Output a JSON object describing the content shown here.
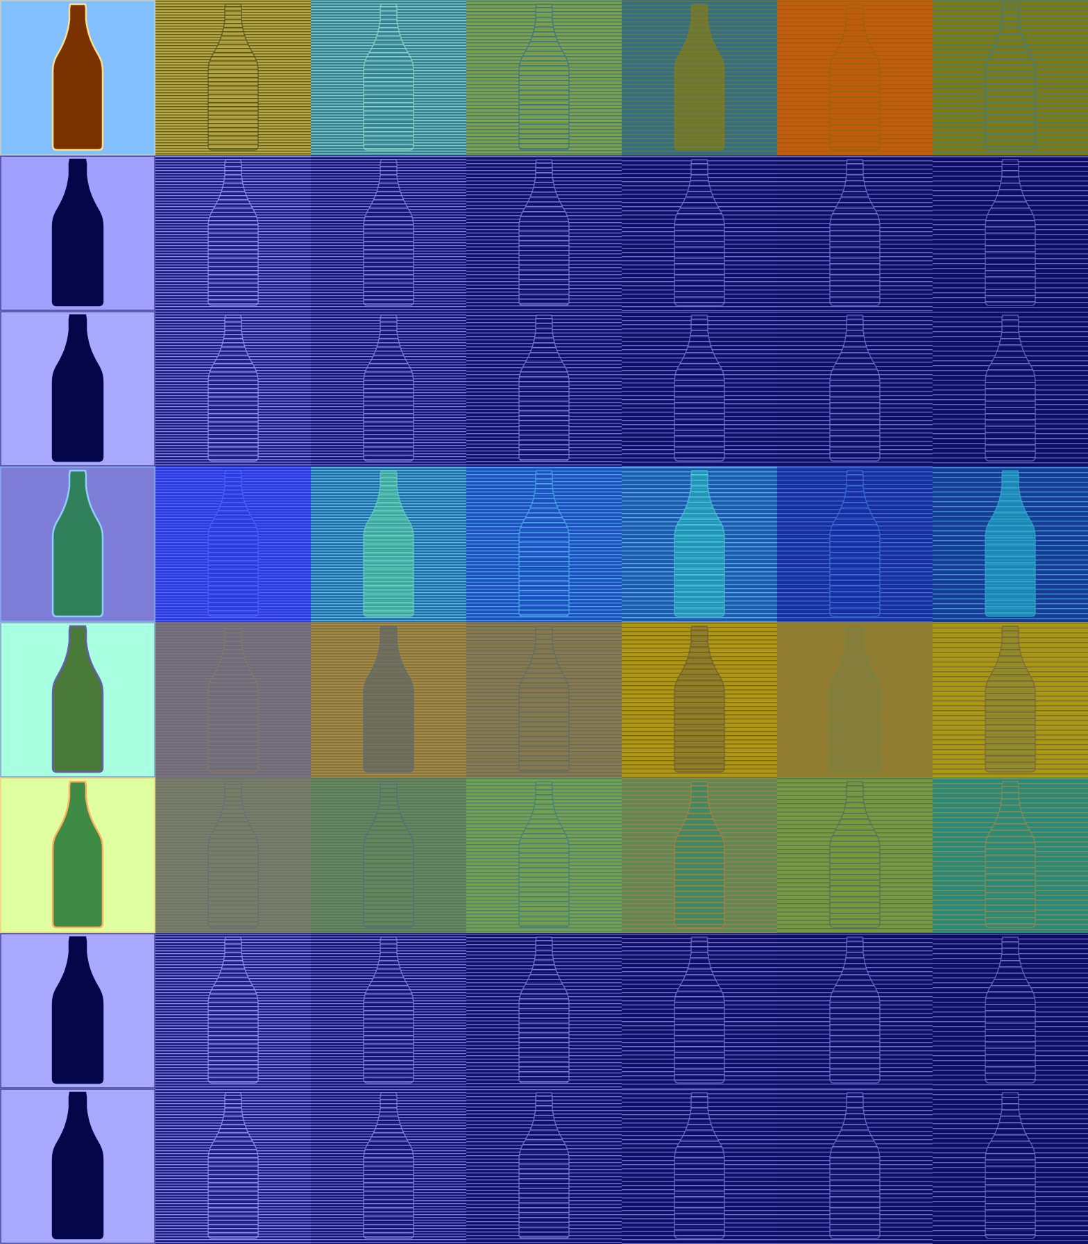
{
  "grid": {
    "rows": [
      {
        "original": {
          "background": "#82bfff",
          "bottle": "#7a3200",
          "outline": "#ffe08a"
        },
        "panels": [
          {
            "background": "#b9a83e",
            "stripe": "#4a4a20",
            "bottle": "#b9a83e"
          },
          {
            "background": "#2f7f9a",
            "stripe": "#9adcc0",
            "bottle": "#2f7f9a"
          },
          {
            "background": "#7fa045",
            "stripe": "#2f6f95",
            "bottle": "#7fa045"
          },
          {
            "background": "#2f6f8a",
            "stripe": "#7f7a20",
            "bottle": "#7f7a20"
          },
          {
            "background": "#c55a10",
            "stripe": "#8a6a00",
            "bottle": "#c55a10"
          },
          {
            "background": "#7f7a10",
            "stripe": "#2f7fa8",
            "bottle": "#7f7a10"
          }
        ]
      },
      {
        "original": {
          "background": "#a0a0ff",
          "bottle": "#05054a",
          "outline": "#05054a"
        },
        "panels": [
          {
            "background": "#1a1a7a",
            "stripe": "#9a9aff",
            "bottle": "#1a1a7a"
          },
          {
            "background": "#12126e",
            "stripe": "#8a8ae8",
            "bottle": "#12126e"
          },
          {
            "background": "#0f0f68",
            "stripe": "#8080e0",
            "bottle": "#0f0f68"
          },
          {
            "background": "#0e0e66",
            "stripe": "#7c7cdc",
            "bottle": "#0e0e66"
          },
          {
            "background": "#0d0d64",
            "stripe": "#7878d8",
            "bottle": "#0d0d64"
          },
          {
            "background": "#0c0c62",
            "stripe": "#7474d4",
            "bottle": "#0c0c62"
          }
        ]
      },
      {
        "original": {
          "background": "#a8a8ff",
          "bottle": "#05054a",
          "outline": "#05054a"
        },
        "panels": [
          {
            "background": "#1a1a7a",
            "stripe": "#9a9aff",
            "bottle": "#1a1a7a"
          },
          {
            "background": "#12126e",
            "stripe": "#8a8ae8",
            "bottle": "#12126e"
          },
          {
            "background": "#0f0f68",
            "stripe": "#8080e0",
            "bottle": "#0f0f68"
          },
          {
            "background": "#0e0e66",
            "stripe": "#7c7cdc",
            "bottle": "#0e0e66"
          },
          {
            "background": "#0d0d64",
            "stripe": "#7878d8",
            "bottle": "#0d0d64"
          },
          {
            "background": "#0c0c62",
            "stripe": "#7474d4",
            "bottle": "#0c0c62"
          }
        ]
      },
      {
        "original": {
          "background": "#7d7dd8",
          "bottle": "#2f7f5a",
          "outline": "#8fd0ff"
        },
        "panels": [
          {
            "background": "#2f38d8",
            "stripe": "#4a6aff",
            "bottle": "#2f38d8"
          },
          {
            "background": "#1f68b8",
            "stripe": "#6ad0c8",
            "bottle": "#48b89a"
          },
          {
            "background": "#1f4ec0",
            "stripe": "#4ab0e8",
            "bottle": "#1f4ec0"
          },
          {
            "background": "#1f58b0",
            "stripe": "#5ac0e0",
            "bottle": "#20a8b8"
          },
          {
            "background": "#1a2ea0",
            "stripe": "#3a78d8",
            "bottle": "#1a2ea0"
          },
          {
            "background": "#1a3a98",
            "stripe": "#38a8d0",
            "bottle": "#20a0c0"
          }
        ]
      },
      {
        "original": {
          "background": "#a8ffe0",
          "bottle": "#4a7a3a",
          "outline": "#6a5ab0"
        },
        "panels": [
          {
            "background": "#6a6a88",
            "stripe": "#8a7a5a",
            "bottle": "#6a6a88"
          },
          {
            "background": "#b0882a",
            "stripe": "#5a6a7a",
            "bottle": "#6a6a5a"
          },
          {
            "background": "#8a7a4a",
            "stripe": "#5a6a6a",
            "bottle": "#8a7a4a"
          },
          {
            "background": "#b0980a",
            "stripe": "#6a5a3a",
            "bottle": "#8a7a2a"
          },
          {
            "background": "#9a7a2a",
            "stripe": "#6a8a4a",
            "bottle": "#8a7a3a"
          },
          {
            "background": "#a89a10",
            "stripe": "#7a5a4a",
            "bottle": "#8a8a2a"
          }
        ]
      },
      {
        "original": {
          "background": "#e0ffa0",
          "bottle": "#3f8a45",
          "outline": "#ffb060"
        },
        "panels": [
          {
            "background": "#7a8060",
            "stripe": "#6a6a7a",
            "bottle": "#7a8060"
          },
          {
            "background": "#6a8a4a",
            "stripe": "#4a6a8a",
            "bottle": "#6a8a4a"
          },
          {
            "background": "#78a04a",
            "stripe": "#3a7a8a",
            "bottle": "#78a04a"
          },
          {
            "background": "#5a8a5a",
            "stripe": "#c07a3a",
            "bottle": "#2f8a6a"
          },
          {
            "background": "#7a9a3a",
            "stripe": "#4a6a6a",
            "bottle": "#7a9a3a"
          },
          {
            "background": "#2a8a7a",
            "stripe": "#9a8a4a",
            "bottle": "#2a8a7a"
          }
        ]
      },
      {
        "original": {
          "background": "#a8a8ff",
          "bottle": "#05054a",
          "outline": "#05054a"
        },
        "panels": [
          {
            "background": "#1a1a7a",
            "stripe": "#9a9aff",
            "bottle": "#1a1a7a"
          },
          {
            "background": "#12126e",
            "stripe": "#8a8ae8",
            "bottle": "#12126e"
          },
          {
            "background": "#0f0f68",
            "stripe": "#8080e0",
            "bottle": "#0f0f68"
          },
          {
            "background": "#0e0e66",
            "stripe": "#7c7cdc",
            "bottle": "#0e0e66"
          },
          {
            "background": "#0d0d64",
            "stripe": "#7878d8",
            "bottle": "#0d0d64"
          },
          {
            "background": "#0c0c62",
            "stripe": "#7474d4",
            "bottle": "#0c0c62"
          }
        ]
      },
      {
        "original": {
          "background": "#a8a8ff",
          "bottle": "#05054a",
          "outline": "#05054a"
        },
        "panels": [
          {
            "background": "#1a1a7a",
            "stripe": "#9a9aff",
            "bottle": "#1a1a7a"
          },
          {
            "background": "#12126e",
            "stripe": "#8a8ae8",
            "bottle": "#12126e"
          },
          {
            "background": "#0f0f68",
            "stripe": "#8080e0",
            "bottle": "#0f0f68"
          },
          {
            "background": "#0e0e66",
            "stripe": "#7c7cdc",
            "bottle": "#0e0e66"
          },
          {
            "background": "#0d0d64",
            "stripe": "#7878d8",
            "bottle": "#0d0d64"
          },
          {
            "background": "#0c0c62",
            "stripe": "#7474d4",
            "bottle": "#0c0c62"
          }
        ]
      }
    ]
  }
}
